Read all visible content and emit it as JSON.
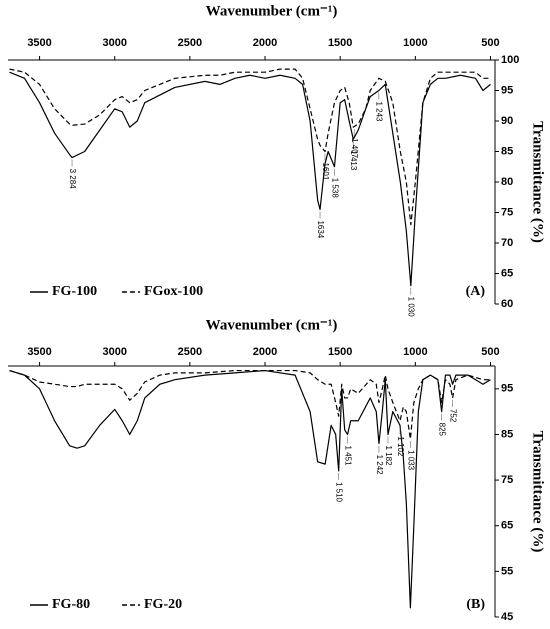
{
  "chart_data": [
    {
      "type": "line",
      "title": "Wavenumber (cm⁻¹)",
      "y_label": "Transmittance (%)",
      "panel_label": "(A)",
      "x": [
        3700,
        3600,
        3500,
        3400,
        3300,
        3284,
        3200,
        3100,
        3000,
        2950,
        2900,
        2850,
        2800,
        2600,
        2400,
        2300,
        2200,
        2100,
        2000,
        1900,
        1800,
        1750,
        1700,
        1650,
        1634,
        1601,
        1580,
        1538,
        1500,
        1470,
        1440,
        1413,
        1380,
        1330,
        1300,
        1243,
        1200,
        1150,
        1100,
        1060,
        1030,
        1000,
        950,
        900,
        850,
        800,
        700,
        600,
        550,
        500
      ],
      "series": [
        {
          "name": "FG-100",
          "color": "#000000",
          "line_style": "solid",
          "values": [
            98,
            97,
            93,
            88,
            84.5,
            84,
            85,
            88.5,
            92,
            91.5,
            89,
            90,
            93,
            95.5,
            96.5,
            96,
            97,
            97.5,
            97,
            97.5,
            97,
            96,
            90,
            77,
            75.5,
            83,
            85,
            82.5,
            93,
            93.5,
            90,
            87,
            88.5,
            92,
            94,
            95,
            96,
            88,
            80,
            72,
            63,
            75,
            93,
            96,
            97,
            97,
            97.5,
            97,
            95,
            96
          ]
        },
        {
          "name": "FGox-100",
          "color": "#000000",
          "line_style": "dashed",
          "values": [
            98.5,
            98,
            96,
            92,
            89.5,
            89.3,
            89.5,
            91,
            93.5,
            94,
            93,
            93.5,
            95,
            97,
            97.5,
            97.5,
            98,
            98,
            98,
            98.5,
            98.5,
            97,
            92,
            87,
            86,
            85,
            88,
            93,
            95,
            95.5,
            93,
            89,
            89.5,
            92,
            95,
            97,
            96.5,
            93,
            85,
            80,
            73,
            80,
            93,
            97,
            98,
            98,
            98,
            98,
            97,
            97
          ]
        }
      ],
      "xlim": [
        3710,
        470
      ],
      "xticks": [
        3500,
        3000,
        2500,
        2000,
        1500,
        1000,
        500
      ],
      "ylim": [
        60,
        100
      ],
      "yticks": [
        60,
        65,
        70,
        75,
        80,
        85,
        90,
        95,
        100
      ],
      "x_reversed": true,
      "legend": "bottom-left",
      "annotations": [
        {
          "label": "3 284",
          "x": 3284,
          "y": 84
        },
        {
          "label": "1634",
          "x": 1634,
          "y": 75.5
        },
        {
          "label": "1601",
          "x": 1601,
          "y": 85
        },
        {
          "label": "1 538",
          "x": 1538,
          "y": 82.5
        },
        {
          "label": "1 413",
          "x": 1413,
          "y": 87
        },
        {
          "label": "1 407",
          "x": 1407,
          "y": 89
        },
        {
          "label": "1 243",
          "x": 1243,
          "y": 95
        },
        {
          "label": "1 030",
          "x": 1030,
          "y": 63
        }
      ]
    },
    {
      "type": "line",
      "title": "Wavenumber (cm⁻¹)",
      "y_label": "Transmittance (%)",
      "panel_label": "(B)",
      "x": [
        3700,
        3600,
        3500,
        3400,
        3300,
        3250,
        3200,
        3100,
        3000,
        2950,
        2900,
        2850,
        2800,
        2700,
        2600,
        2400,
        2200,
        2000,
        1800,
        1700,
        1650,
        1600,
        1560,
        1530,
        1510,
        1490,
        1470,
        1451,
        1430,
        1380,
        1300,
        1260,
        1242,
        1220,
        1200,
        1182,
        1150,
        1102,
        1080,
        1060,
        1033,
        1010,
        980,
        950,
        900,
        850,
        825,
        800,
        770,
        752,
        730,
        650,
        550,
        500
      ],
      "series": [
        {
          "name": "FG-80",
          "color": "#000000",
          "line_style": "solid",
          "values": [
            99,
            98,
            95,
            88,
            82.5,
            82,
            82.5,
            87,
            90.5,
            88,
            85,
            88,
            93,
            96,
            97,
            98,
            98.5,
            99,
            98,
            90,
            79,
            78.5,
            87,
            85,
            77,
            95,
            86,
            85,
            88,
            88,
            93,
            90,
            83,
            90,
            97,
            85,
            90,
            87,
            80,
            70,
            47,
            65,
            90,
            97,
            98,
            97,
            90,
            98,
            98,
            96,
            98,
            98,
            96,
            97
          ]
        },
        {
          "name": "FG-20",
          "color": "#000000",
          "line_style": "dashed",
          "values": [
            99,
            98,
            96.5,
            96,
            95.5,
            95.5,
            96,
            96,
            96,
            95,
            92.5,
            94,
            96.5,
            98,
            98.5,
            98.5,
            99,
            99,
            99,
            98.5,
            97,
            96,
            96,
            92,
            89,
            96,
            93,
            93,
            95,
            94,
            97,
            96,
            92,
            95,
            98,
            95,
            92,
            88,
            91,
            90,
            84,
            92,
            95,
            97,
            98,
            97,
            92,
            97,
            96,
            93,
            97,
            98,
            97,
            97
          ]
        }
      ],
      "xlim": [
        3710,
        470
      ],
      "xticks": [
        3500,
        3000,
        2500,
        2000,
        1500,
        1000,
        500
      ],
      "ylim": [
        45,
        100
      ],
      "yticks": [
        45,
        55,
        65,
        75,
        85,
        95
      ],
      "x_reversed": true,
      "legend": "bottom-left",
      "annotations": [
        {
          "label": "1 510",
          "x": 1510,
          "y": 77
        },
        {
          "label": "1 451",
          "x": 1451,
          "y": 85
        },
        {
          "label": "1 242",
          "x": 1242,
          "y": 83
        },
        {
          "label": "1 182",
          "x": 1182,
          "y": 85
        },
        {
          "label": "1 102",
          "x": 1102,
          "y": 87
        },
        {
          "label": "1 033",
          "x": 1033,
          "y": 84
        },
        {
          "label": "825",
          "x": 825,
          "y": 90
        },
        {
          "label": "752",
          "x": 752,
          "y": 93
        }
      ]
    }
  ]
}
